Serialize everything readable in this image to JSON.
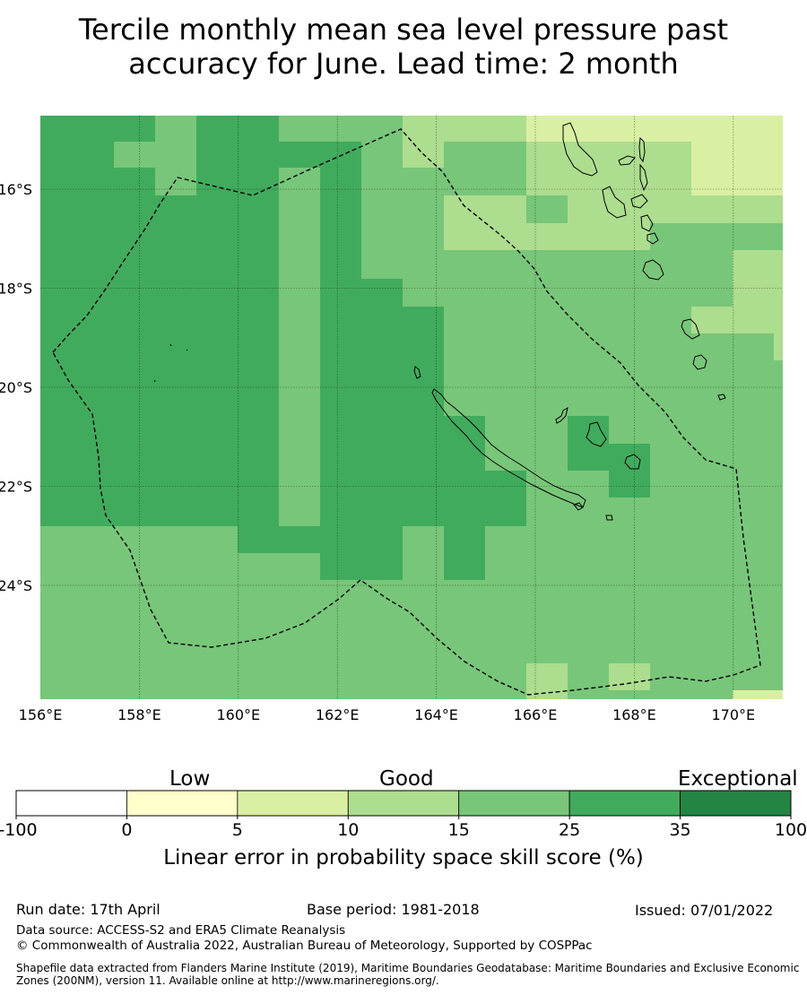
{
  "title": {
    "line1": "Tercile monthly mean sea level pressure past",
    "line2": "accuracy for June. Lead time: 2 month"
  },
  "map": {
    "lon_range": [
      156,
      171
    ],
    "lat_range": [
      -26.6,
      -14.5
    ],
    "lon_ticks": [
      "156°E",
      "158°E",
      "160°E",
      "162°E",
      "164°E",
      "166°E",
      "168°E",
      "170°E"
    ],
    "lat_ticks": [
      "16°S",
      "18°S",
      "20°S",
      "22°S",
      "24°S"
    ],
    "skill_colors": {
      "c1": "#d9f0a3",
      "c2": "#addd8e",
      "c3": "#78c679",
      "c4": "#41ab5d"
    },
    "boundary_line": "dashed, black"
  },
  "colorbar": {
    "headings": [
      "Low",
      "Good",
      "Exceptional"
    ],
    "ticks": [
      "-100",
      "0",
      "5",
      "10",
      "15",
      "25",
      "35",
      "100"
    ],
    "colors": [
      "#ffffff",
      "#ffffcc",
      "#d9f0a3",
      "#addd8e",
      "#78c679",
      "#41ab5d",
      "#238443"
    ],
    "label": "Linear error in probability space skill score (%)"
  },
  "footer": {
    "run_date": "Run date: 17th April",
    "base_period": "Base period: 1981-2018",
    "issued": "Issued: 07/01/2022",
    "data_source": "Data source: ACCESS-S2 and ERA5 Climate Reanalysis",
    "copyright": "© Commonwealth of Australia 2022, Australian Bureau of Meteorology, Supported by COSPPac",
    "shapefile": "Shapefile data extracted from Flanders Marine Institute (2019), Maritime Boundaries Geodatabase: Maritime Boundaries and Exclusive Economic Zones (200NM), version 11. Available online at http://www.marineregions.org/."
  }
}
